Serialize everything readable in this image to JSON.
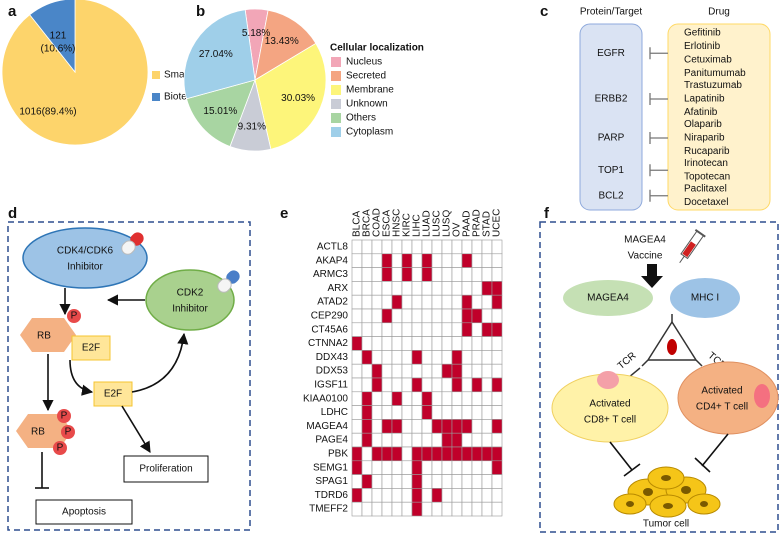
{
  "panel_labels": [
    "a",
    "b",
    "c",
    "d",
    "e",
    "f"
  ],
  "chart_data": [
    {
      "type": "pie",
      "categories": [
        "Small molecule drugs",
        "Biotech drugs"
      ],
      "values": [
        1016,
        121
      ],
      "value_labels": [
        [
          "1016(89.4%)"
        ],
        [
          "121",
          "(10.6%)"
        ]
      ],
      "colors": [
        "#fdd46b",
        "#4a86c8"
      ]
    },
    {
      "type": "pie",
      "legend_title": "Cellular localization",
      "categories": [
        "Nucleus",
        "Secreted",
        "Membrane",
        "Unknown",
        "Others",
        "Cytoplasm"
      ],
      "values": [
        5.18,
        13.43,
        30.03,
        9.31,
        15.01,
        27.04
      ],
      "value_labels": [
        "5.18%",
        "13.43%",
        "30.03%",
        "9.31%",
        "15.01%",
        "27.04%"
      ],
      "colors": [
        "#f2a6b7",
        "#f4a582",
        "#fdf57a",
        "#c9ccd6",
        "#a8d5a2",
        "#9fcfe9"
      ]
    },
    {
      "type": "heatmap",
      "columns": [
        "BLCA",
        "BRCA",
        "COAD",
        "ESCA",
        "HNSC",
        "KIRC",
        "LIHC",
        "LUAD",
        "LUSC",
        "LUSQ",
        "OV",
        "PAAD",
        "PRAD",
        "STAD",
        "UCEC"
      ],
      "rows": [
        "ACTL8",
        "AKAP4",
        "ARMC3",
        "ARX",
        "ATAD2",
        "CEP290",
        "CT45A6",
        "CTNNA2",
        "DDX43",
        "DDX53",
        "IGSF11",
        "KIAA0100",
        "LDHC",
        "MAGEA4",
        "PAGE4",
        "PBK",
        "SEMG1",
        "SPAG1",
        "TDRD6",
        "TMEFF2"
      ],
      "color": "#c0002a",
      "values": [
        [
          0,
          0,
          0,
          0,
          0,
          0,
          0,
          0,
          0,
          0,
          0,
          0,
          0,
          0,
          0
        ],
        [
          0,
          0,
          0,
          1,
          0,
          1,
          0,
          1,
          0,
          0,
          0,
          1,
          0,
          0,
          0
        ],
        [
          0,
          0,
          0,
          1,
          0,
          1,
          0,
          1,
          0,
          0,
          0,
          0,
          0,
          0,
          0
        ],
        [
          0,
          0,
          0,
          0,
          0,
          0,
          0,
          0,
          0,
          0,
          0,
          0,
          0,
          1,
          1
        ],
        [
          0,
          0,
          0,
          0,
          1,
          0,
          0,
          0,
          0,
          0,
          0,
          1,
          0,
          0,
          1
        ],
        [
          0,
          0,
          0,
          1,
          0,
          0,
          0,
          0,
          0,
          0,
          0,
          1,
          1,
          0,
          0
        ],
        [
          0,
          0,
          0,
          0,
          0,
          0,
          0,
          0,
          0,
          0,
          0,
          1,
          0,
          1,
          1
        ],
        [
          1,
          0,
          0,
          0,
          0,
          0,
          0,
          0,
          0,
          0,
          0,
          0,
          0,
          0,
          0
        ],
        [
          0,
          1,
          0,
          0,
          0,
          0,
          1,
          0,
          0,
          0,
          1,
          0,
          0,
          0,
          0
        ],
        [
          0,
          0,
          1,
          0,
          0,
          0,
          0,
          0,
          0,
          1,
          1,
          0,
          0,
          0,
          0
        ],
        [
          0,
          0,
          1,
          0,
          0,
          0,
          1,
          0,
          0,
          0,
          1,
          0,
          1,
          0,
          1
        ],
        [
          0,
          1,
          0,
          0,
          1,
          0,
          0,
          1,
          0,
          0,
          0,
          0,
          0,
          0,
          0
        ],
        [
          0,
          1,
          0,
          0,
          0,
          0,
          0,
          1,
          0,
          0,
          0,
          0,
          0,
          0,
          0
        ],
        [
          0,
          1,
          0,
          1,
          1,
          0,
          0,
          0,
          1,
          1,
          1,
          1,
          0,
          0,
          1
        ],
        [
          0,
          1,
          0,
          0,
          0,
          0,
          0,
          0,
          0,
          1,
          1,
          0,
          0,
          0,
          0
        ],
        [
          1,
          0,
          1,
          1,
          1,
          0,
          1,
          1,
          1,
          1,
          1,
          1,
          1,
          1,
          1
        ],
        [
          1,
          0,
          0,
          0,
          0,
          0,
          1,
          0,
          0,
          0,
          0,
          0,
          0,
          0,
          1
        ],
        [
          0,
          1,
          0,
          0,
          0,
          0,
          1,
          0,
          0,
          0,
          0,
          0,
          0,
          0,
          0
        ],
        [
          1,
          0,
          0,
          0,
          0,
          0,
          1,
          0,
          1,
          0,
          0,
          0,
          0,
          0,
          0
        ],
        [
          0,
          0,
          0,
          0,
          0,
          0,
          1,
          0,
          0,
          0,
          0,
          0,
          0,
          0,
          0
        ]
      ]
    }
  ],
  "panel_c": {
    "header": [
      "Protein/Target",
      "Drug"
    ],
    "rows": [
      {
        "target": "EGFR",
        "drugs": [
          "Gefitinib",
          "Erlotinib",
          "Cetuximab",
          "Panitumumab"
        ]
      },
      {
        "target": "ERBB2",
        "drugs": [
          "Trastuzumab",
          "Lapatinib",
          "Afatinib"
        ]
      },
      {
        "target": "PARP",
        "drugs": [
          "Olaparib",
          "Niraparib",
          "Rucaparib"
        ]
      },
      {
        "target": "TOP1",
        "drugs": [
          "Irinotecan",
          "Topotecan"
        ]
      },
      {
        "target": "BCL2",
        "drugs": [
          "Paclitaxel",
          "Docetaxel"
        ]
      }
    ]
  },
  "panel_d": {
    "cdk46_inhibitor": [
      "CDK4/CDK6",
      "Inhibitor"
    ],
    "cdk2_inhibitor": [
      "CDK2",
      "Inhibitor"
    ],
    "rb_labels": [
      "RB",
      "RB"
    ],
    "p_labels": [
      "P",
      "P",
      "P",
      "P"
    ],
    "e2f_labels": [
      "E2F",
      "E2F"
    ],
    "proliferation": "Proliferation",
    "apoptosis": "Apoptosis"
  },
  "panel_f": {
    "vaccine": [
      "MAGEA4",
      "Vaccine"
    ],
    "antigen": "MAGEA4",
    "mhc": "MHC I",
    "tcr_labels": [
      "TCR",
      "TCR"
    ],
    "cd8": [
      "Activated",
      "CD8+ T cell"
    ],
    "cd4": [
      "Activated",
      "CD4+ T cell"
    ],
    "tumor": "Tumor cell"
  }
}
